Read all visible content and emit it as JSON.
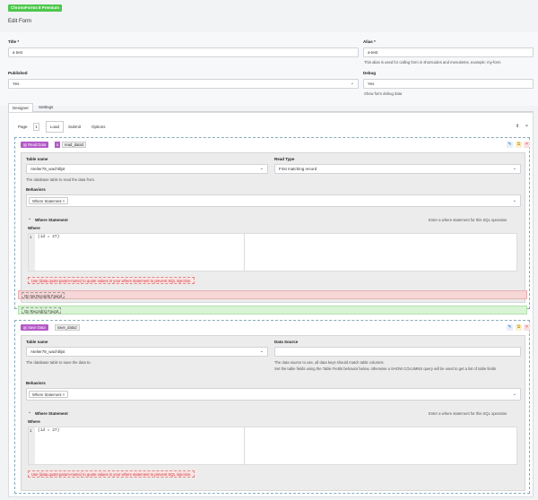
{
  "app": {
    "badge": "ChronoForms 8 Premium",
    "page_title": "Edit Form"
  },
  "form": {
    "title_label": "Title *",
    "title_value": "a test",
    "alias_label": "Alias *",
    "alias_value": "a-test",
    "alias_hint": "This alias is used for calling form in shortcodes and menuitems, example: my-form",
    "published_label": "Published",
    "published_value": "Yes",
    "debug_label": "Debug",
    "debug_value": "Yes",
    "debug_hint": "Show form debug data"
  },
  "main_tabs": [
    {
      "label": "Designer"
    },
    {
      "label": "Settings"
    }
  ],
  "page_bar": {
    "page_label": "Page",
    "page_number": "1",
    "tabs": [
      {
        "label": "Load"
      },
      {
        "label": "Submit"
      },
      {
        "label": "Options"
      }
    ]
  },
  "read_block": {
    "tag": "Read Data",
    "number": "5",
    "name": "read_data3",
    "table_label": "Table name",
    "table_value": "Atelier78_wachtlijst",
    "table_hint": "The database table to read the data from.",
    "read_type_label": "Read Type",
    "read_type_value": "First matching record",
    "behaviors_label": "Behaviors",
    "behavior_chip": "Where Statement",
    "where_section": "Where Statement",
    "where_section_hint": "Enter a where statement for this SQL operation",
    "where_label": "Where",
    "code_line": "1",
    "code": "(id = 27)",
    "sql_note": "Use {data.quote:param-name} to quote values in your where statement to prevent SQL injection."
  },
  "events": {
    "no_records": "On No Records Found",
    "records": "On Record(s) Found"
  },
  "save_block": {
    "tag": "Save Data",
    "name": "save_data2",
    "table_label": "Table name",
    "table_value": "Atelier78_wachtlijst",
    "table_hint": "The database table to save the data to.",
    "source_label": "Data Source",
    "source_hint1": "The data source to use, all data keys should match table columns.",
    "source_hint2": "Set the table fields using the Table Fields behavior below, otherwise a SHOW COLUMNS query will be used to get a list of table fields",
    "behaviors_label": "Behaviors",
    "behavior_chip": "Where Statement",
    "where_section": "Where Statement",
    "where_section_hint": "Enter a where statement for this SQL operation",
    "where_label": "Where",
    "code_line": "1",
    "code": "(id = 27)",
    "sql_note": "Use {data.quote:param-name} to quote values in your where statement to prevent SQL injection."
  },
  "colors": {
    "premium": "#4cc84c",
    "block_tag": "#b45ac8",
    "no_records_bg": "#f6d6d6",
    "records_bg": "#d8f4d4"
  }
}
